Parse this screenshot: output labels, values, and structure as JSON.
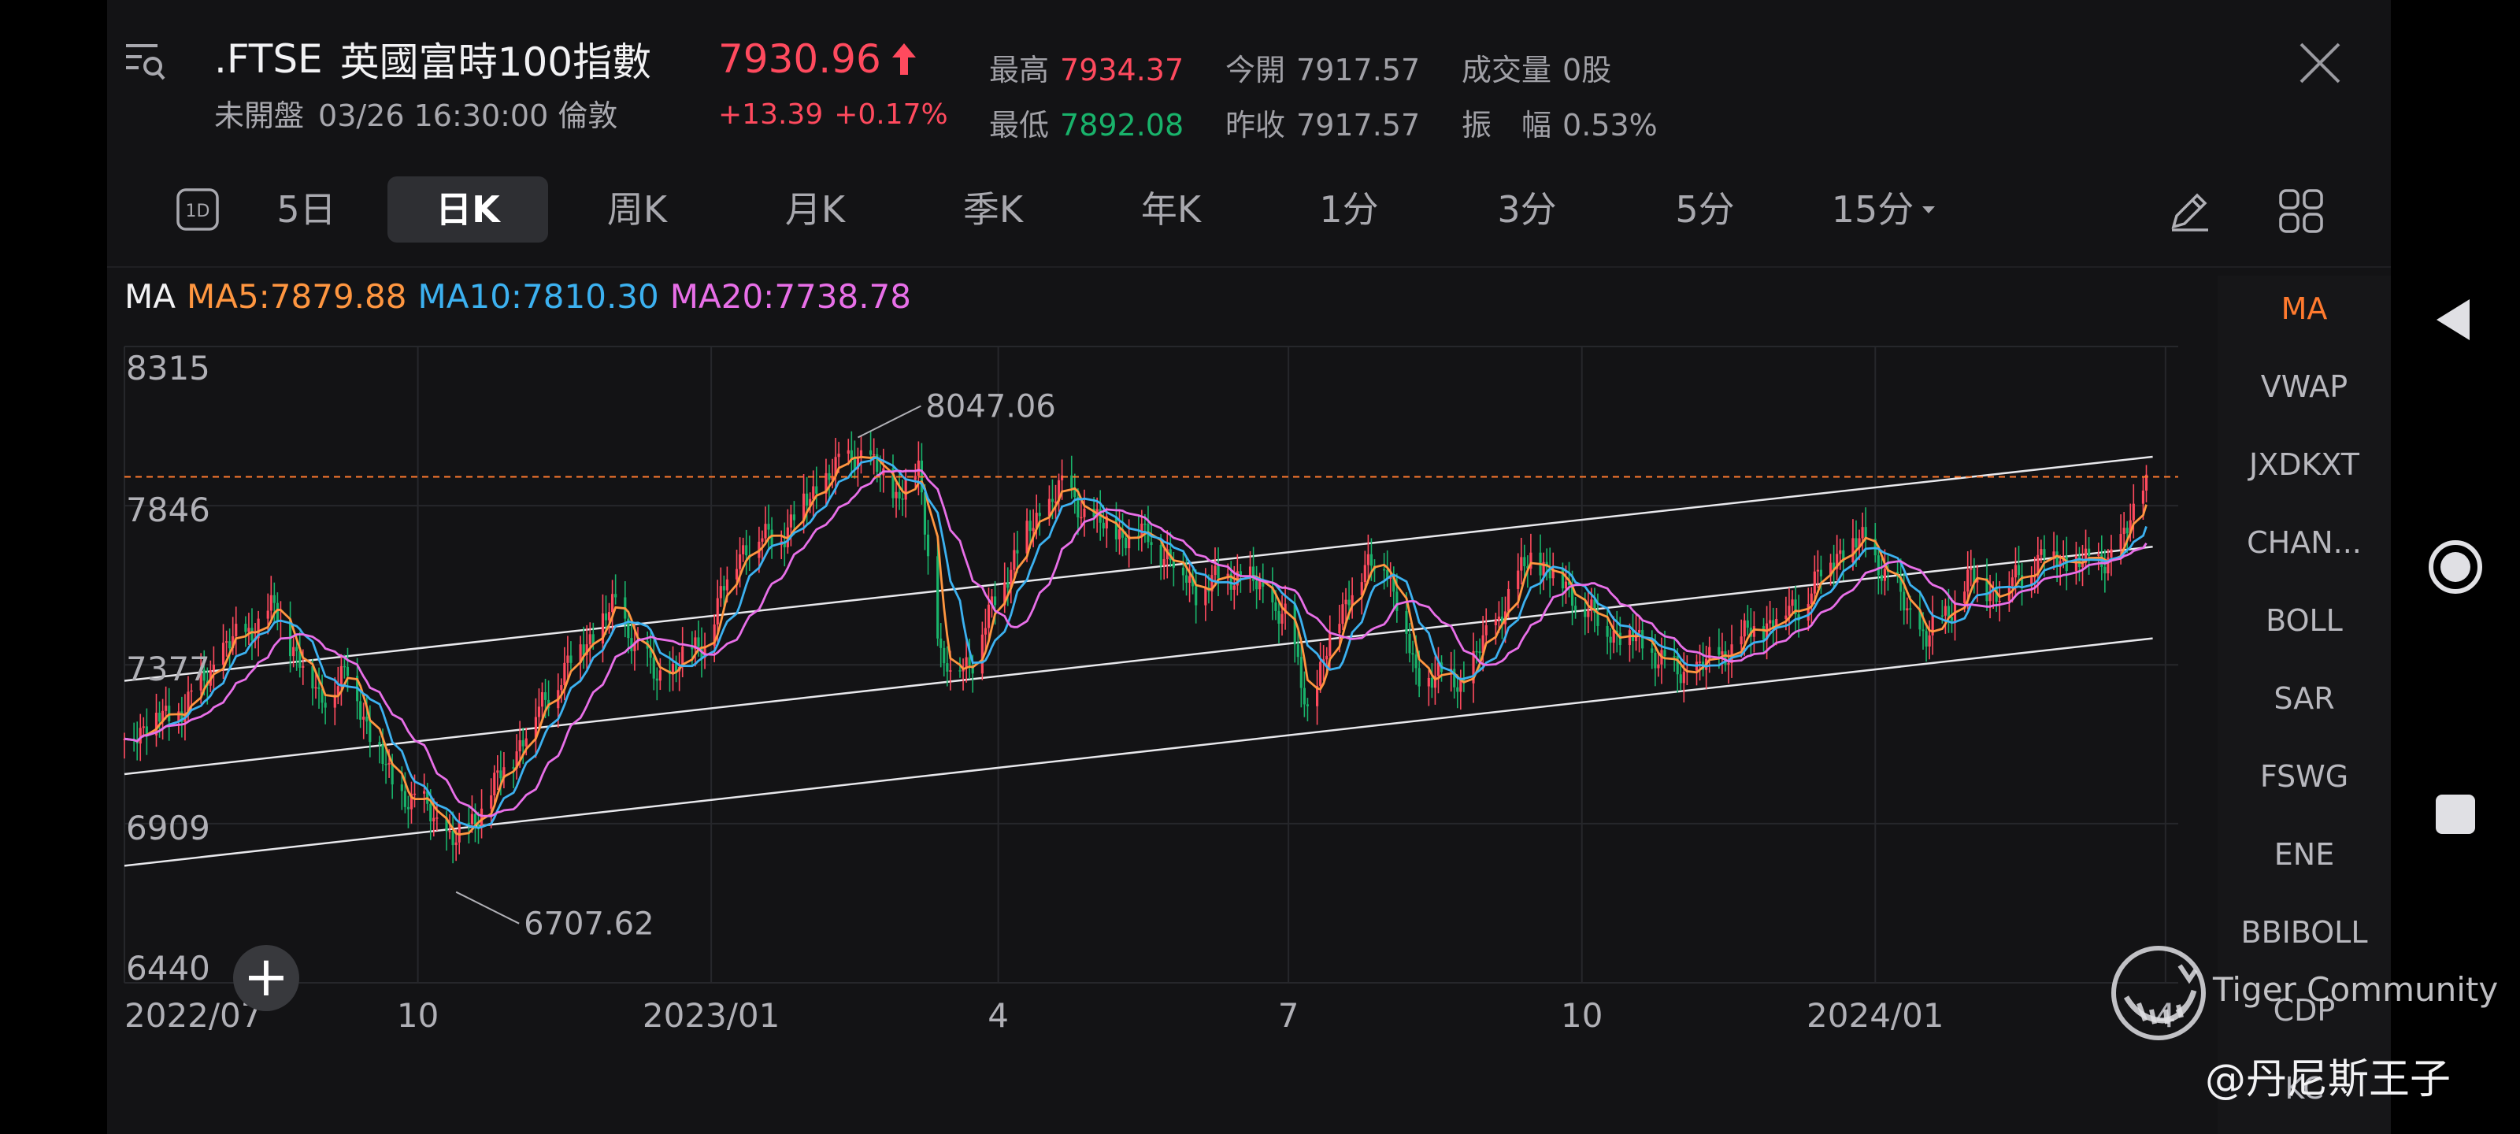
{
  "header": {
    "symbol": ".FTSE",
    "name": "英國富時100指數",
    "status": "未開盤",
    "datetime": "03/26 16:30:00 倫敦",
    "price": "7930.96",
    "change": "+13.39",
    "change_pct": "+0.17%",
    "direction_icon": "arrow-up-icon",
    "stats": {
      "high_label": "最高",
      "high_value": "7934.37",
      "open_label": "今開",
      "open_value": "7917.57",
      "volume_label": "成交量",
      "volume_value": "0股",
      "low_label": "最低",
      "low_value": "7892.08",
      "prev_close_label": "昨收",
      "prev_close_value": "7917.57",
      "amplitude_label": "振　幅",
      "amplitude_value": "0.53%"
    }
  },
  "tabs": {
    "items": [
      "5日",
      "日K",
      "周K",
      "月K",
      "季K",
      "年K",
      "1分",
      "3分",
      "5分",
      "15分"
    ],
    "active": "日K",
    "oneday_icon_label": "1D"
  },
  "legend": {
    "label": "MA",
    "ma5": "MA5:7879.88",
    "ma10": "MA10:7810.30",
    "ma20": "MA20:7738.78"
  },
  "indicators": [
    "MA",
    "VWAP",
    "JXDKXT",
    "CHAN...",
    "BOLL",
    "SAR",
    "FSWG",
    "ENE",
    "BBIBOLL",
    "CDP",
    "KC"
  ],
  "watermark": {
    "brand": "Tiger Community",
    "author": "@丹尼斯王子"
  },
  "colors": {
    "up": "#ff4a5e",
    "down": "#19b36b",
    "ma5": "#ff9640",
    "ma10": "#3cb1f0",
    "ma20": "#e86fe8",
    "active_indicator": "#ff7a2e"
  },
  "chart_data": {
    "type": "candlestick",
    "y_ticks": [
      "8315",
      "7846",
      "7377",
      "6909",
      "6440"
    ],
    "ylim": [
      6440,
      8315
    ],
    "x_ticks": [
      "2022/07",
      "10",
      "2023/01",
      "4",
      "7",
      "10",
      "2024/01",
      "4"
    ],
    "x_tick_dates": [
      "2022-07-01",
      "2022-10-01",
      "2023-01-01",
      "2023-04-01",
      "2023-07-01",
      "2023-10-01",
      "2024-01-01",
      "2024-04-01"
    ],
    "xlim": [
      "2022-07-01",
      "2024-04-05"
    ],
    "annotations": [
      {
        "text": "8047.06",
        "date": "2023-02-16",
        "value": 8047.06
      },
      {
        "text": "6707.62",
        "date": "2022-10-13",
        "value": 6707.62
      }
    ],
    "reference_line": 7930.96,
    "channel_lines": [
      {
        "start_date": "2022-07-01",
        "start": 7330,
        "end_date": "2024-03-28",
        "end": 7990
      },
      {
        "start_date": "2022-07-01",
        "start": 7055,
        "end_date": "2024-03-28",
        "end": 7725
      },
      {
        "start_date": "2022-07-01",
        "start": 6785,
        "end_date": "2024-03-28",
        "end": 7455
      }
    ],
    "close_path": [
      [
        "2022-07-01",
        7170
      ],
      [
        "2022-07-08",
        7200
      ],
      [
        "2022-07-20",
        7250
      ],
      [
        "2022-08-01",
        7420
      ],
      [
        "2022-08-17",
        7540
      ],
      [
        "2022-08-31",
        7280
      ],
      [
        "2022-09-09",
        7350
      ],
      [
        "2022-09-23",
        7020
      ],
      [
        "2022-10-04",
        6950
      ],
      [
        "2022-10-13",
        6850
      ],
      [
        "2022-10-24",
        7000
      ],
      [
        "2022-11-02",
        7150
      ],
      [
        "2022-11-15",
        7350
      ],
      [
        "2022-11-24",
        7460
      ],
      [
        "2022-12-02",
        7550
      ],
      [
        "2022-12-15",
        7330
      ],
      [
        "2022-12-30",
        7450
      ],
      [
        "2023-01-10",
        7720
      ],
      [
        "2023-01-24",
        7770
      ],
      [
        "2023-02-03",
        7900
      ],
      [
        "2023-02-16",
        8010
      ],
      [
        "2023-02-28",
        7880
      ],
      [
        "2023-03-07",
        7940
      ],
      [
        "2023-03-15",
        7350
      ],
      [
        "2023-03-24",
        7400
      ],
      [
        "2023-04-06",
        7700
      ],
      [
        "2023-04-20",
        7900
      ],
      [
        "2023-05-04",
        7780
      ],
      [
        "2023-05-19",
        7750
      ],
      [
        "2023-06-02",
        7600
      ],
      [
        "2023-06-16",
        7650
      ],
      [
        "2023-06-30",
        7520
      ],
      [
        "2023-07-07",
        7250
      ],
      [
        "2023-07-20",
        7600
      ],
      [
        "2023-07-31",
        7700
      ],
      [
        "2023-08-10",
        7350
      ],
      [
        "2023-08-25",
        7330
      ],
      [
        "2023-09-15",
        7700
      ],
      [
        "2023-09-27",
        7600
      ],
      [
        "2023-10-06",
        7500
      ],
      [
        "2023-10-20",
        7440
      ],
      [
        "2023-10-31",
        7350
      ],
      [
        "2023-11-10",
        7380
      ],
      [
        "2023-11-24",
        7480
      ],
      [
        "2023-12-08",
        7550
      ],
      [
        "2023-12-20",
        7710
      ],
      [
        "2023-12-29",
        7740
      ],
      [
        "2024-01-17",
        7450
      ],
      [
        "2024-01-31",
        7630
      ],
      [
        "2024-02-09",
        7590
      ],
      [
        "2024-02-23",
        7700
      ],
      [
        "2024-03-08",
        7670
      ],
      [
        "2024-03-18",
        7720
      ],
      [
        "2024-03-26",
        7930
      ]
    ]
  }
}
